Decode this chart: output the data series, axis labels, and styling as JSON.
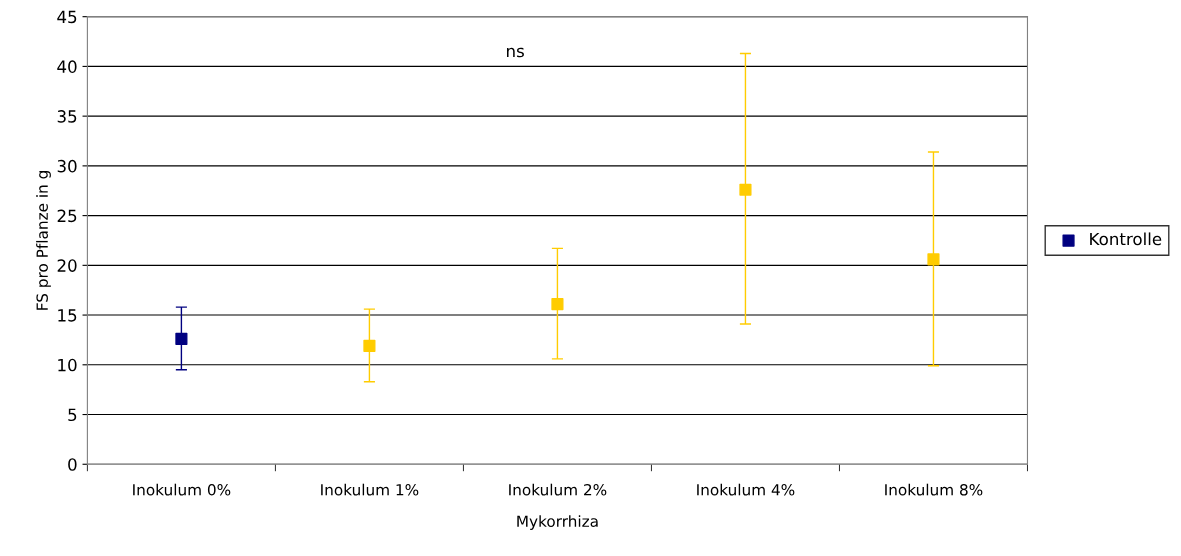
{
  "chart_data": {
    "type": "scatter",
    "xlabel": "Mykorrhiza",
    "ylabel": "FS pro Pflanze in g",
    "categories": [
      "Inokulum 0%",
      "Inokulum 1%",
      "Inokulum 2%",
      "Inokulum 4%",
      "Inokulum 8%"
    ],
    "series": [
      {
        "name": "Kontrolle",
        "color": "#000080",
        "values": [
          12.6,
          null,
          null,
          null,
          null
        ],
        "errors": [
          [
            9.5,
            15.8
          ],
          null,
          null,
          null,
          null
        ]
      },
      {
        "color": "#ffcc00",
        "values": [
          null,
          11.9,
          16.1,
          27.6,
          20.6
        ],
        "errors": [
          null,
          [
            8.3,
            15.6
          ],
          [
            10.6,
            21.7
          ],
          [
            14.1,
            41.3
          ],
          [
            9.9,
            31.4
          ]
        ]
      }
    ],
    "ylim": [
      0,
      45
    ],
    "yticks": [
      0,
      5,
      10,
      15,
      20,
      25,
      30,
      35,
      40,
      45
    ],
    "grid": "y",
    "legend": "right",
    "marker": "square",
    "annotations": [
      "ns"
    ]
  }
}
